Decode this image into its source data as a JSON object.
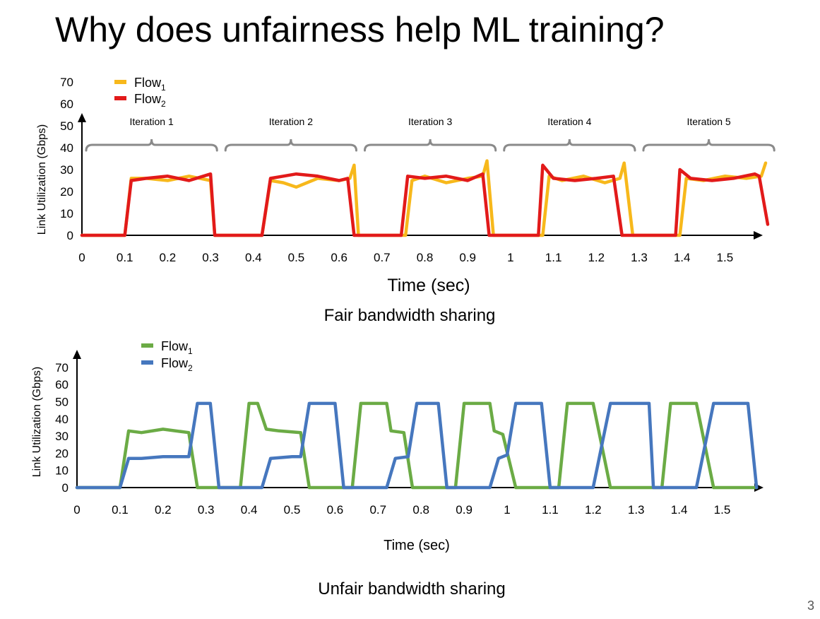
{
  "slide": {
    "title": "Why does unfairness help ML training?",
    "page_number": "3"
  },
  "colors": {
    "fair_flow1": "#f7b81b",
    "fair_flow2": "#e21a1a",
    "unfair_flow1": "#6bab45",
    "unfair_flow2": "#4677be",
    "bracket": "#8a8a8a"
  },
  "chart_data": [
    {
      "type": "line",
      "caption": "Fair bandwidth sharing",
      "xlabel": "Time (sec)",
      "ylabel": "Link Utilization (Gbps)",
      "xlim": [
        0,
        1.6
      ],
      "ylim": [
        0,
        70
      ],
      "xticks": [
        "0",
        "0.1",
        "0.2",
        "0.3",
        "0.4",
        "0.5",
        "0.6",
        "0.7",
        "0.8",
        "0.9",
        "1",
        "1.1",
        "1.2",
        "1.3",
        "1.4",
        "1.5"
      ],
      "yticks": [
        "0",
        "10",
        "20",
        "30",
        "40",
        "50",
        "60",
        "70"
      ],
      "legend_position": "top-left",
      "grid": false,
      "iterations": [
        {
          "label": "Iteration 1",
          "start": 0.0,
          "end": 0.325
        },
        {
          "label": "Iteration 2",
          "start": 0.325,
          "end": 0.65
        },
        {
          "label": "Iteration 3",
          "start": 0.65,
          "end": 0.975
        },
        {
          "label": "Iteration 4",
          "start": 0.975,
          "end": 1.3
        },
        {
          "label": "Iteration 5",
          "start": 1.3,
          "end": 1.625
        }
      ],
      "series": [
        {
          "label_main": "Flow",
          "label_sub": "1",
          "color": "#f7b81b",
          "x": [
            0,
            0.1,
            0.115,
            0.15,
            0.2,
            0.25,
            0.3,
            0.31,
            0.42,
            0.44,
            0.47,
            0.5,
            0.55,
            0.6,
            0.625,
            0.635,
            0.645,
            0.755,
            0.77,
            0.8,
            0.85,
            0.9,
            0.935,
            0.945,
            0.96,
            1.075,
            1.09,
            1.12,
            1.17,
            1.22,
            1.255,
            1.265,
            1.285,
            1.395,
            1.41,
            1.45,
            1.5,
            1.55,
            1.585,
            1.595
          ],
          "y": [
            0,
            0,
            26,
            26,
            25,
            27,
            25,
            0,
            0,
            25,
            24,
            22,
            26,
            25,
            26,
            32,
            0,
            0,
            25,
            27,
            24,
            26,
            27,
            34,
            0,
            0,
            27,
            25,
            27,
            24,
            26,
            33,
            0,
            0,
            26,
            25,
            27,
            26,
            27,
            33
          ]
        },
        {
          "label_main": "Flow",
          "label_sub": "2",
          "color": "#e21a1a",
          "x": [
            0,
            0.1,
            0.115,
            0.15,
            0.2,
            0.25,
            0.3,
            0.31,
            0.42,
            0.44,
            0.47,
            0.5,
            0.55,
            0.6,
            0.62,
            0.635,
            0.745,
            0.76,
            0.8,
            0.85,
            0.9,
            0.935,
            0.95,
            1.065,
            1.075,
            1.1,
            1.15,
            1.2,
            1.24,
            1.26,
            1.385,
            1.395,
            1.42,
            1.47,
            1.52,
            1.57,
            1.58,
            1.6
          ],
          "y": [
            0,
            0,
            25,
            26,
            27,
            25,
            28,
            0,
            0,
            26,
            27,
            28,
            27,
            25,
            26,
            0,
            0,
            27,
            26,
            27,
            25,
            28,
            0,
            0,
            32,
            26,
            25,
            26,
            27,
            0,
            0,
            30,
            26,
            25,
            26,
            28,
            27,
            5
          ]
        }
      ]
    },
    {
      "type": "line",
      "caption": "Unfair bandwidth sharing",
      "xlabel": "Time (sec)",
      "ylabel": "Link Utilization (Gbps)",
      "xlim": [
        0,
        1.6
      ],
      "ylim": [
        0,
        70
      ],
      "xticks": [
        "0",
        "0.1",
        "0.2",
        "0.3",
        "0.4",
        "0.5",
        "0.6",
        "0.7",
        "0.8",
        "0.9",
        "1",
        "1.1",
        "1.2",
        "1.3",
        "1.4",
        "1.5"
      ],
      "yticks": [
        "0",
        "10",
        "20",
        "30",
        "40",
        "50",
        "60",
        "70"
      ],
      "legend_position": "top-left",
      "grid": false,
      "series": [
        {
          "label_main": "Flow",
          "label_sub": "1",
          "color": "#6bab45",
          "x": [
            0,
            0.1,
            0.12,
            0.15,
            0.2,
            0.26,
            0.28,
            0.38,
            0.4,
            0.42,
            0.44,
            0.47,
            0.52,
            0.54,
            0.64,
            0.66,
            0.72,
            0.73,
            0.76,
            0.78,
            0.88,
            0.9,
            0.96,
            0.97,
            0.99,
            1.02,
            1.12,
            1.14,
            1.2,
            1.24,
            1.36,
            1.38,
            1.44,
            1.48,
            1.58
          ],
          "y": [
            0,
            0,
            33,
            32,
            34,
            32,
            0,
            0,
            49,
            49,
            34,
            33,
            32,
            0,
            0,
            49,
            49,
            33,
            32,
            0,
            0,
            49,
            49,
            33,
            31,
            0,
            0,
            49,
            49,
            0,
            0,
            49,
            49,
            0,
            0
          ]
        },
        {
          "label_main": "Flow",
          "label_sub": "2",
          "color": "#4677be",
          "x": [
            0,
            0.1,
            0.12,
            0.15,
            0.2,
            0.26,
            0.28,
            0.31,
            0.33,
            0.43,
            0.45,
            0.5,
            0.52,
            0.54,
            0.6,
            0.62,
            0.72,
            0.74,
            0.77,
            0.79,
            0.84,
            0.86,
            0.96,
            0.98,
            1.0,
            1.02,
            1.08,
            1.1,
            1.2,
            1.24,
            1.33,
            1.34,
            1.44,
            1.48,
            1.56,
            1.58
          ],
          "y": [
            0,
            0,
            17,
            17,
            18,
            18,
            49,
            49,
            0,
            0,
            17,
            18,
            18,
            49,
            49,
            0,
            0,
            17,
            18,
            49,
            49,
            0,
            0,
            17,
            19,
            49,
            49,
            0,
            0,
            49,
            49,
            0,
            0,
            49,
            49,
            0
          ]
        }
      ]
    }
  ]
}
